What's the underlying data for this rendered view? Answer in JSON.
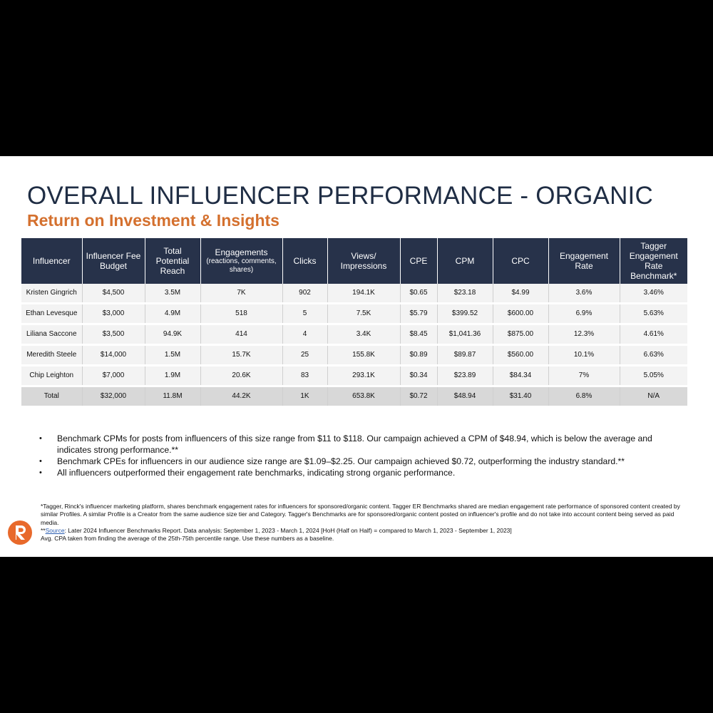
{
  "title": "OVERALL INFLUENCER PERFORMANCE - ORGANIC",
  "subtitle": "Return on Investment & Insights",
  "table": {
    "headers": [
      {
        "main": "Influencer"
      },
      {
        "main": "Influencer Fee Budget"
      },
      {
        "main": "Total Potential Reach"
      },
      {
        "main": "Engagements",
        "sub": "(reactions, comments, shares)"
      },
      {
        "main": "Clicks"
      },
      {
        "main": "Views/ Impressions"
      },
      {
        "main": "CPE"
      },
      {
        "main": "CPM"
      },
      {
        "main": "CPC"
      },
      {
        "main": "Engagement Rate"
      },
      {
        "main": "Tagger Engagement Rate Benchmark*"
      }
    ],
    "rows": [
      [
        "Kristen Gingrich",
        "$4,500",
        "3.5M",
        "7K",
        "902",
        "194.1K",
        "$0.65",
        "$23.18",
        "$4.99",
        "3.6%",
        "3.46%"
      ],
      [
        "Ethan Levesque",
        "$3,000",
        "4.9M",
        "518",
        "5",
        "7.5K",
        "$5.79",
        "$399.52",
        "$600.00",
        "6.9%",
        "5.63%"
      ],
      [
        "Liliana Saccone",
        "$3,500",
        "94.9K",
        "414",
        "4",
        "3.4K",
        "$8.45",
        "$1,041.36",
        "$875.00",
        "12.3%",
        "4.61%"
      ],
      [
        "Meredith Steele",
        "$14,000",
        "1.5M",
        "15.7K",
        "25",
        "155.8K",
        "$0.89",
        "$89.87",
        "$560.00",
        "10.1%",
        "6.63%"
      ],
      [
        "Chip Leighton",
        "$7,000",
        "1.9M",
        "20.6K",
        "83",
        "293.1K",
        "$0.34",
        "$23.89",
        "$84.34",
        "7%",
        "5.05%"
      ]
    ],
    "total": [
      "Total",
      "$32,000",
      "11.8M",
      "44.2K",
      "1K",
      "653.8K",
      "$0.72",
      "$48.94",
      "$31.40",
      "6.8%",
      "N/A"
    ]
  },
  "bullets": [
    "Benchmark CPMs for posts from influencers of this size range from $11 to $118. Our campaign achieved a CPM of $48.94, which is below the average and indicates strong performance.**",
    "Benchmark CPEs for influencers in our audience size range are $1.09–$2.25. Our campaign achieved $0.72, outperforming the industry standard.**",
    "All influencers outperformed their engagement rate benchmarks, indicating strong organic performance."
  ],
  "footnotes": {
    "tagger": "*Tagger, Rinck's influencer marketing platform, shares benchmark engagement rates for influencers for sponsored/organic content. Tagger ER Benchmarks shared are median engagement rate performance of sponsored content created by similar Profiles. A similar Profile is a Creator from the same audience size tier and Category. Tagger's Benchmarks are for sponsored/organic content posted on influencer's profile and do not take into account content being served as paid media.",
    "source_prefix": "**",
    "source_link": "Source",
    "source_text": ": Later 2024 Influencer Benchmarks Report. Data analysis: September 1, 2023 - March 1, 2024 [HoH (Half on Half) = compared to March 1, 2023 - September 1, 2023]",
    "cpa": "Avg. CPA taken from finding the average of the 25th-75th percentile range. Use these numbers as a baseline."
  },
  "colors": {
    "title": "#1f2d44",
    "subtitle": "#d4702e",
    "header_bg": "#27324a",
    "row_bg": "#f3f3f3",
    "total_bg": "#d8d8d8",
    "logo": "#e8692b"
  },
  "logo_icon": "rinck-r-logo-icon"
}
